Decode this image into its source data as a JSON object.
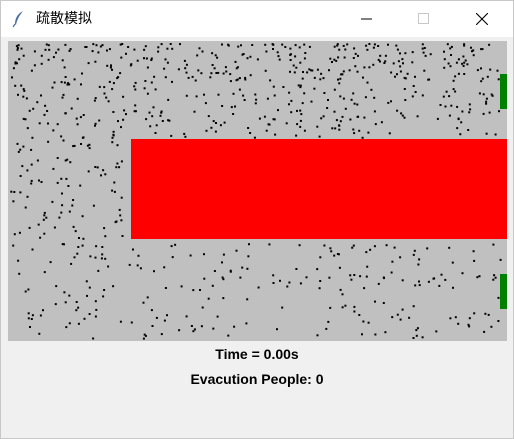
{
  "window": {
    "title": "疏散模拟",
    "app_icon": "feather-icon",
    "controls": [
      "minimize-icon",
      "maximize-icon",
      "close-icon"
    ]
  },
  "simulation": {
    "background_color": "#c0c0c0",
    "person_color": "#000000",
    "obstacle_color": "#ff0000",
    "exit_color": "#008000"
  },
  "status": {
    "time": "Time = 0.00s",
    "evacuated": "Evacution People: 0"
  }
}
